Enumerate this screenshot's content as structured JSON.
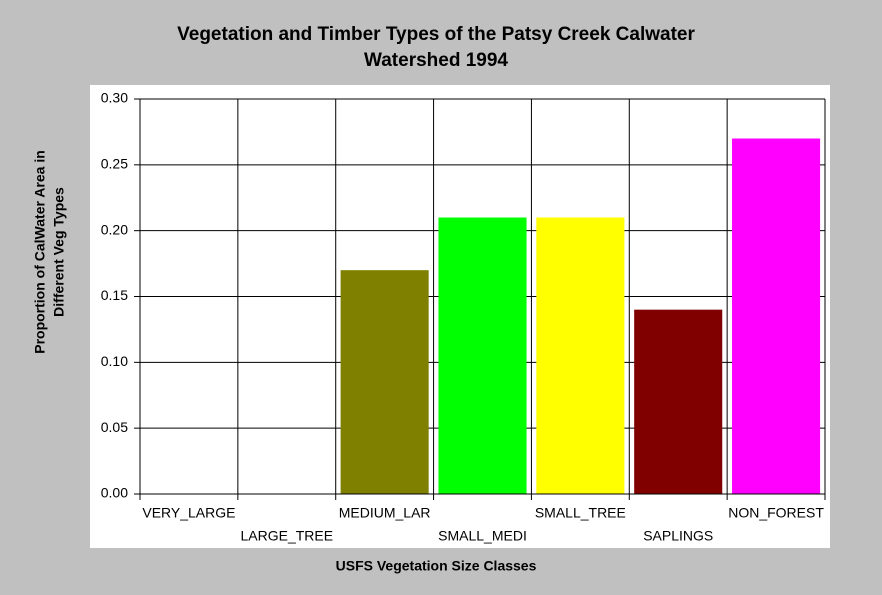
{
  "chart_data": {
    "type": "bar",
    "title": [
      "Vegetation and Timber Types of the Patsy Creek Calwater",
      "Watershed 1994"
    ],
    "x_label": "USFS Vegetation Size Classes",
    "y_label": [
      "Proportion of CalWater Area in",
      "Different Veg Types"
    ],
    "categories": [
      "VERY_LARGE",
      "LARGE_TREE",
      "MEDIUM_LAR",
      "SMALL_MEDI",
      "SMALL_TREE",
      "SAPLINGS",
      "NON_FOREST"
    ],
    "values": [
      0,
      0,
      0.17,
      0.21,
      0.21,
      0.14,
      0.27
    ],
    "colors": [
      "#808000",
      "#808000",
      "#808000",
      "#00ff00",
      "#ffff00",
      "#800000",
      "#ff00ff"
    ],
    "ylim": [
      0,
      0.3
    ],
    "yticks": [
      {
        "value": 0,
        "label": "0.00"
      },
      0.05,
      {
        "value": 0.1,
        "label": "0.10"
      },
      0.15,
      {
        "value": 0.2,
        "label": "0.20"
      },
      0.25,
      {
        "value": 0.3,
        "label": "0.30"
      }
    ],
    "grid": true
  }
}
